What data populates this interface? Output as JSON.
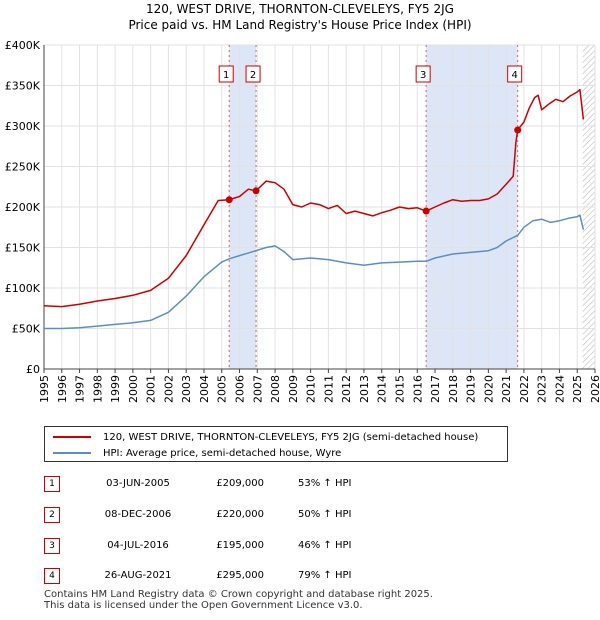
{
  "title": {
    "line1": "120, WEST DRIVE, THORNTON-CLEVELEYS, FY5 2JG",
    "line2": "Price paid vs. HM Land Registry's House Price Index (HPI)"
  },
  "colors": {
    "property": "#cc0000",
    "hpi": "#5b8ec6",
    "shade": "#dde6f7",
    "grid": "#e2e2e2",
    "marker_line": "#e06060"
  },
  "chart_data": {
    "type": "line",
    "title": "120, WEST DRIVE, THORNTON-CLEVELEYS, FY5 2JG - Price paid vs. HM Land Registry's House Price Index (HPI)",
    "xlabel": "",
    "ylabel": "",
    "xlim": [
      1995,
      2026
    ],
    "ylim": [
      0,
      400000
    ],
    "x_ticks": [
      "1995",
      "1996",
      "1997",
      "1998",
      "1999",
      "2000",
      "2001",
      "2002",
      "2003",
      "2004",
      "2005",
      "2006",
      "2007",
      "2008",
      "2009",
      "2010",
      "2011",
      "2012",
      "2013",
      "2014",
      "2015",
      "2016",
      "2017",
      "2018",
      "2019",
      "2020",
      "2021",
      "2022",
      "2023",
      "2024",
      "2025",
      "2026"
    ],
    "y_ticks": [
      {
        "value": 0,
        "label": "£0"
      },
      {
        "value": 50000,
        "label": "£50K"
      },
      {
        "value": 100000,
        "label": "£100K"
      },
      {
        "value": 150000,
        "label": "£150K"
      },
      {
        "value": 200000,
        "label": "£200K"
      },
      {
        "value": 250000,
        "label": "£250K"
      },
      {
        "value": 300000,
        "label": "£300K"
      },
      {
        "value": 350000,
        "label": "£350K"
      },
      {
        "value": 400000,
        "label": "£400K"
      }
    ],
    "grid": true,
    "shaded_periods": [
      [
        2005.42,
        2006.93
      ],
      [
        2016.5,
        2021.65
      ]
    ],
    "hatched_from": 2025.3,
    "series": [
      {
        "name": "120, WEST DRIVE, THORNTON-CLEVELEYS, FY5 2JG (semi-detached house)",
        "points": [
          [
            1995,
            78000
          ],
          [
            1996,
            77000
          ],
          [
            1997,
            80000
          ],
          [
            1998,
            84000
          ],
          [
            1999,
            87000
          ],
          [
            2000,
            91000
          ],
          [
            2001,
            97000
          ],
          [
            2002,
            112000
          ],
          [
            2003,
            140000
          ],
          [
            2004,
            178000
          ],
          [
            2004.8,
            208000
          ],
          [
            2005.42,
            209000
          ],
          [
            2006,
            213000
          ],
          [
            2006.5,
            222000
          ],
          [
            2006.93,
            220000
          ],
          [
            2007.5,
            232000
          ],
          [
            2008,
            230000
          ],
          [
            2008.5,
            222000
          ],
          [
            2009,
            203000
          ],
          [
            2009.5,
            200000
          ],
          [
            2010,
            205000
          ],
          [
            2010.5,
            203000
          ],
          [
            2011,
            198000
          ],
          [
            2011.5,
            202000
          ],
          [
            2012,
            192000
          ],
          [
            2012.5,
            195000
          ],
          [
            2013,
            192000
          ],
          [
            2013.5,
            189000
          ],
          [
            2014,
            193000
          ],
          [
            2014.5,
            196000
          ],
          [
            2015,
            200000
          ],
          [
            2015.5,
            198000
          ],
          [
            2016,
            199000
          ],
          [
            2016.5,
            195000
          ],
          [
            2017,
            200000
          ],
          [
            2017.5,
            205000
          ],
          [
            2018,
            209000
          ],
          [
            2018.5,
            207000
          ],
          [
            2019,
            208000
          ],
          [
            2019.5,
            208000
          ],
          [
            2020,
            210000
          ],
          [
            2020.5,
            216000
          ],
          [
            2021,
            228000
          ],
          [
            2021.4,
            238000
          ],
          [
            2021.55,
            280000
          ],
          [
            2021.65,
            295000
          ],
          [
            2022,
            305000
          ],
          [
            2022.3,
            322000
          ],
          [
            2022.6,
            335000
          ],
          [
            2022.8,
            338000
          ],
          [
            2023,
            320000
          ],
          [
            2023.4,
            327000
          ],
          [
            2023.8,
            333000
          ],
          [
            2024.2,
            330000
          ],
          [
            2024.6,
            337000
          ],
          [
            2025,
            342000
          ],
          [
            2025.15,
            345000
          ],
          [
            2025.35,
            308000
          ]
        ]
      },
      {
        "name": "HPI: Average price, semi-detached house, Wyre",
        "points": [
          [
            1995,
            50000
          ],
          [
            1996,
            50000
          ],
          [
            1997,
            51000
          ],
          [
            1998,
            53000
          ],
          [
            1999,
            55000
          ],
          [
            2000,
            57000
          ],
          [
            2001,
            60000
          ],
          [
            2002,
            70000
          ],
          [
            2003,
            90000
          ],
          [
            2004,
            114000
          ],
          [
            2005,
            132000
          ],
          [
            2005.42,
            136000
          ],
          [
            2006,
            140000
          ],
          [
            2006.93,
            146000
          ],
          [
            2007.5,
            150000
          ],
          [
            2008,
            152000
          ],
          [
            2008.5,
            145000
          ],
          [
            2009,
            135000
          ],
          [
            2010,
            137000
          ],
          [
            2011,
            135000
          ],
          [
            2012,
            131000
          ],
          [
            2013,
            128000
          ],
          [
            2014,
            131000
          ],
          [
            2015,
            132000
          ],
          [
            2016,
            133000
          ],
          [
            2016.5,
            133000
          ],
          [
            2017,
            137000
          ],
          [
            2018,
            142000
          ],
          [
            2019,
            144000
          ],
          [
            2020,
            146000
          ],
          [
            2020.5,
            150000
          ],
          [
            2021,
            158000
          ],
          [
            2021.65,
            165000
          ],
          [
            2022,
            175000
          ],
          [
            2022.5,
            183000
          ],
          [
            2023,
            185000
          ],
          [
            2023.5,
            181000
          ],
          [
            2024,
            183000
          ],
          [
            2024.5,
            186000
          ],
          [
            2025,
            188000
          ],
          [
            2025.15,
            190000
          ],
          [
            2025.35,
            172000
          ]
        ]
      }
    ],
    "sales": [
      {
        "label": "1",
        "x": 2005.42,
        "price": 209000
      },
      {
        "label": "2",
        "x": 2006.93,
        "price": 220000
      },
      {
        "label": "3",
        "x": 2016.5,
        "price": 195000
      },
      {
        "label": "4",
        "x": 2021.65,
        "price": 295000
      }
    ]
  },
  "legend": {
    "property_label": "120, WEST DRIVE, THORNTON-CLEVELEYS, FY5 2JG (semi-detached house)",
    "hpi_label": "HPI: Average price, semi-detached house, Wyre"
  },
  "transactions": [
    {
      "num": "1",
      "date": "03-JUN-2005",
      "price": "£209,000",
      "hpi": "53% ↑ HPI"
    },
    {
      "num": "2",
      "date": "08-DEC-2006",
      "price": "£220,000",
      "hpi": "50% ↑ HPI"
    },
    {
      "num": "3",
      "date": "04-JUL-2016",
      "price": "£195,000",
      "hpi": "46% ↑ HPI"
    },
    {
      "num": "4",
      "date": "26-AUG-2021",
      "price": "£295,000",
      "hpi": "79% ↑ HPI"
    }
  ],
  "footer": {
    "line1": "Contains HM Land Registry data © Crown copyright and database right 2025.",
    "line2": "This data is licensed under the Open Government Licence v3.0."
  }
}
